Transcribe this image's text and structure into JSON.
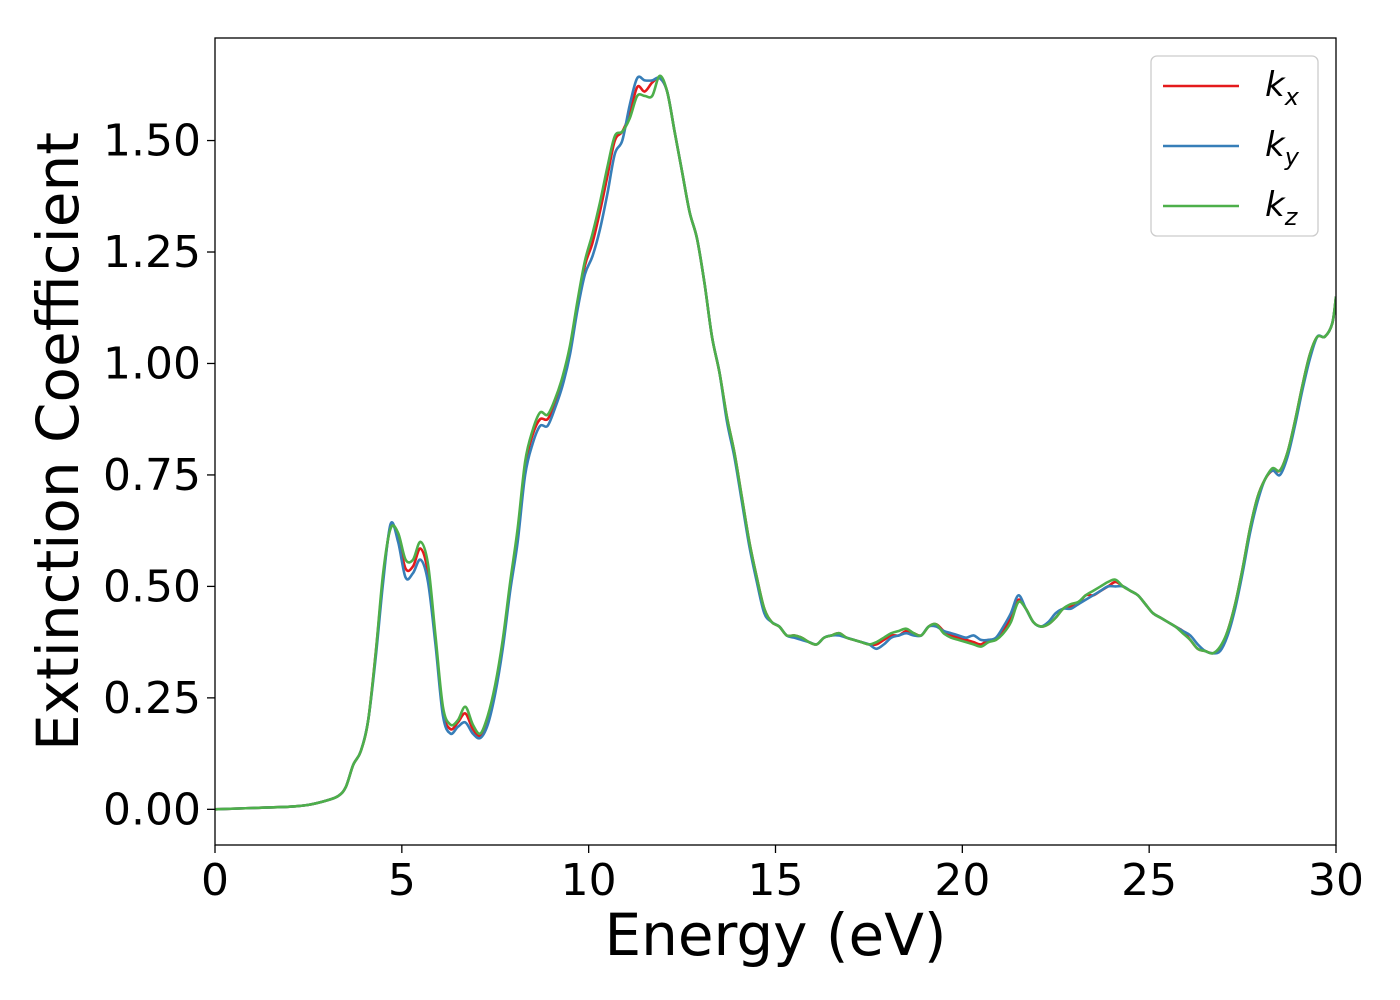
{
  "chart_data": {
    "type": "line",
    "xlabel": "Energy (eV)",
    "ylabel": "Extinction Coefficient",
    "xlim": [
      0,
      30
    ],
    "ylim": [
      -0.08,
      1.73
    ],
    "xticks": [
      0,
      5,
      10,
      15,
      20,
      25,
      30
    ],
    "xtick_labels": [
      "0",
      "5",
      "10",
      "15",
      "20",
      "25",
      "30"
    ],
    "yticks": [
      0,
      0.25,
      0.5,
      0.75,
      1.0,
      1.25,
      1.5
    ],
    "ytick_labels": [
      "0.00",
      "0.25",
      "0.50",
      "0.75",
      "1.00",
      "1.25",
      "1.50"
    ],
    "grid": false,
    "legend_position": "top-right",
    "series": [
      {
        "name": "k_x",
        "label_main": "k",
        "label_sub": "x",
        "color": "#e41a1c",
        "x": [
          0,
          1,
          2,
          2.5,
          3,
          3.3,
          3.5,
          3.7,
          3.9,
          4.1,
          4.3,
          4.5,
          4.7,
          4.9,
          5.1,
          5.3,
          5.5,
          5.7,
          5.9,
          6.1,
          6.3,
          6.5,
          6.7,
          6.9,
          7.1,
          7.3,
          7.5,
          7.7,
          7.9,
          8.1,
          8.3,
          8.5,
          8.7,
          8.9,
          9.1,
          9.3,
          9.5,
          9.7,
          9.9,
          10.1,
          10.3,
          10.5,
          10.7,
          10.9,
          11.1,
          11.3,
          11.5,
          11.7,
          11.9,
          12.1,
          12.3,
          12.5,
          12.7,
          12.9,
          13.1,
          13.3,
          13.5,
          13.7,
          13.9,
          14.1,
          14.3,
          14.5,
          14.7,
          14.9,
          15.1,
          15.3,
          15.5,
          15.7,
          15.9,
          16.1,
          16.3,
          16.5,
          16.7,
          16.9,
          17.1,
          17.3,
          17.5,
          17.7,
          17.9,
          18.1,
          18.3,
          18.5,
          18.7,
          18.9,
          19.1,
          19.3,
          19.5,
          19.7,
          19.9,
          20.1,
          20.3,
          20.5,
          20.7,
          20.9,
          21.1,
          21.3,
          21.5,
          21.7,
          21.9,
          22.1,
          22.3,
          22.5,
          22.7,
          22.9,
          23.1,
          23.3,
          23.5,
          23.7,
          23.9,
          24.1,
          24.3,
          24.5,
          24.7,
          24.9,
          25.1,
          25.3,
          25.5,
          25.7,
          25.9,
          26.1,
          26.3,
          26.5,
          26.7,
          26.9,
          27.1,
          27.3,
          27.5,
          27.7,
          27.9,
          28.1,
          28.3,
          28.5,
          28.7,
          28.9,
          29.1,
          29.3,
          29.5,
          29.7,
          29.9,
          30
        ],
        "y": [
          0,
          0.003,
          0.006,
          0.01,
          0.02,
          0.03,
          0.05,
          0.1,
          0.13,
          0.2,
          0.35,
          0.52,
          0.635,
          0.61,
          0.54,
          0.545,
          0.585,
          0.53,
          0.38,
          0.22,
          0.18,
          0.195,
          0.215,
          0.18,
          0.165,
          0.2,
          0.27,
          0.37,
          0.5,
          0.62,
          0.77,
          0.84,
          0.875,
          0.875,
          0.91,
          0.96,
          1.03,
          1.13,
          1.22,
          1.27,
          1.34,
          1.42,
          1.5,
          1.52,
          1.56,
          1.62,
          1.61,
          1.63,
          1.64,
          1.61,
          1.52,
          1.43,
          1.34,
          1.28,
          1.18,
          1.06,
          0.98,
          0.88,
          0.8,
          0.7,
          0.6,
          0.52,
          0.45,
          0.42,
          0.41,
          0.39,
          0.39,
          0.385,
          0.375,
          0.37,
          0.385,
          0.39,
          0.395,
          0.385,
          0.38,
          0.375,
          0.37,
          0.37,
          0.38,
          0.39,
          0.39,
          0.4,
          0.395,
          0.39,
          0.41,
          0.415,
          0.4,
          0.39,
          0.385,
          0.38,
          0.375,
          0.37,
          0.38,
          0.38,
          0.4,
          0.43,
          0.47,
          0.45,
          0.42,
          0.41,
          0.415,
          0.43,
          0.45,
          0.455,
          0.46,
          0.48,
          0.48,
          0.49,
          0.5,
          0.51,
          0.5,
          0.49,
          0.48,
          0.46,
          0.44,
          0.43,
          0.42,
          0.41,
          0.4,
          0.38,
          0.36,
          0.355,
          0.35,
          0.36,
          0.4,
          0.46,
          0.54,
          0.63,
          0.7,
          0.74,
          0.76,
          0.76,
          0.8,
          0.87,
          0.95,
          1.02,
          1.06,
          1.06,
          1.09,
          1.15
        ]
      },
      {
        "name": "k_y",
        "label_main": "k",
        "label_sub": "y",
        "color": "#377eb8",
        "x": [
          0,
          1,
          2,
          2.5,
          3,
          3.3,
          3.5,
          3.7,
          3.9,
          4.1,
          4.3,
          4.5,
          4.7,
          4.9,
          5.1,
          5.3,
          5.5,
          5.7,
          5.9,
          6.1,
          6.3,
          6.5,
          6.7,
          6.9,
          7.1,
          7.3,
          7.5,
          7.7,
          7.9,
          8.1,
          8.3,
          8.5,
          8.7,
          8.9,
          9.1,
          9.3,
          9.5,
          9.7,
          9.9,
          10.1,
          10.3,
          10.5,
          10.7,
          10.9,
          11.1,
          11.3,
          11.5,
          11.7,
          11.9,
          12.1,
          12.3,
          12.5,
          12.7,
          12.9,
          13.1,
          13.3,
          13.5,
          13.7,
          13.9,
          14.1,
          14.3,
          14.5,
          14.7,
          14.9,
          15.1,
          15.3,
          15.5,
          15.7,
          15.9,
          16.1,
          16.3,
          16.5,
          16.7,
          16.9,
          17.1,
          17.3,
          17.5,
          17.7,
          17.9,
          18.1,
          18.3,
          18.5,
          18.7,
          18.9,
          19.1,
          19.3,
          19.5,
          19.7,
          19.9,
          20.1,
          20.3,
          20.5,
          20.7,
          20.9,
          21.1,
          21.3,
          21.5,
          21.7,
          21.9,
          22.1,
          22.3,
          22.5,
          22.7,
          22.9,
          23.1,
          23.3,
          23.5,
          23.7,
          23.9,
          24.1,
          24.3,
          24.5,
          24.7,
          24.9,
          25.1,
          25.3,
          25.5,
          25.7,
          25.9,
          26.1,
          26.3,
          26.5,
          26.7,
          26.9,
          27.1,
          27.3,
          27.5,
          27.7,
          27.9,
          28.1,
          28.3,
          28.5,
          28.7,
          28.9,
          29.1,
          29.3,
          29.5,
          29.7,
          29.9,
          30
        ],
        "y": [
          0,
          0.003,
          0.006,
          0.01,
          0.02,
          0.03,
          0.05,
          0.1,
          0.13,
          0.2,
          0.34,
          0.51,
          0.64,
          0.6,
          0.52,
          0.53,
          0.56,
          0.51,
          0.37,
          0.21,
          0.17,
          0.185,
          0.195,
          0.17,
          0.16,
          0.19,
          0.26,
          0.36,
          0.49,
          0.6,
          0.75,
          0.82,
          0.86,
          0.86,
          0.9,
          0.95,
          1.02,
          1.12,
          1.2,
          1.24,
          1.3,
          1.38,
          1.47,
          1.5,
          1.58,
          1.64,
          1.635,
          1.635,
          1.64,
          1.61,
          1.52,
          1.43,
          1.34,
          1.28,
          1.18,
          1.06,
          0.98,
          0.87,
          0.79,
          0.69,
          0.59,
          0.51,
          0.44,
          0.42,
          0.41,
          0.39,
          0.385,
          0.38,
          0.375,
          0.37,
          0.385,
          0.39,
          0.39,
          0.385,
          0.38,
          0.375,
          0.37,
          0.36,
          0.37,
          0.385,
          0.39,
          0.395,
          0.39,
          0.39,
          0.41,
          0.41,
          0.4,
          0.395,
          0.39,
          0.385,
          0.39,
          0.38,
          0.38,
          0.385,
          0.41,
          0.44,
          0.48,
          0.45,
          0.42,
          0.41,
          0.42,
          0.44,
          0.45,
          0.45,
          0.46,
          0.47,
          0.48,
          0.49,
          0.5,
          0.5,
          0.5,
          0.49,
          0.48,
          0.46,
          0.44,
          0.43,
          0.42,
          0.41,
          0.4,
          0.39,
          0.37,
          0.355,
          0.35,
          0.355,
          0.39,
          0.45,
          0.53,
          0.62,
          0.69,
          0.74,
          0.76,
          0.75,
          0.79,
          0.86,
          0.94,
          1.01,
          1.06,
          1.06,
          1.09,
          1.15
        ]
      },
      {
        "name": "k_z",
        "label_main": "k",
        "label_sub": "z",
        "color": "#4daf4a",
        "x": [
          0,
          1,
          2,
          2.5,
          3,
          3.3,
          3.5,
          3.7,
          3.9,
          4.1,
          4.3,
          4.5,
          4.7,
          4.9,
          5.1,
          5.3,
          5.5,
          5.7,
          5.9,
          6.1,
          6.3,
          6.5,
          6.7,
          6.9,
          7.1,
          7.3,
          7.5,
          7.7,
          7.9,
          8.1,
          8.3,
          8.5,
          8.7,
          8.9,
          9.1,
          9.3,
          9.5,
          9.7,
          9.9,
          10.1,
          10.3,
          10.5,
          10.7,
          10.9,
          11.1,
          11.3,
          11.5,
          11.7,
          11.9,
          12.1,
          12.3,
          12.5,
          12.7,
          12.9,
          13.1,
          13.3,
          13.5,
          13.7,
          13.9,
          14.1,
          14.3,
          14.5,
          14.7,
          14.9,
          15.1,
          15.3,
          15.5,
          15.7,
          15.9,
          16.1,
          16.3,
          16.5,
          16.7,
          16.9,
          17.1,
          17.3,
          17.5,
          17.7,
          17.9,
          18.1,
          18.3,
          18.5,
          18.7,
          18.9,
          19.1,
          19.3,
          19.5,
          19.7,
          19.9,
          20.1,
          20.3,
          20.5,
          20.7,
          20.9,
          21.1,
          21.3,
          21.5,
          21.7,
          21.9,
          22.1,
          22.3,
          22.5,
          22.7,
          22.9,
          23.1,
          23.3,
          23.5,
          23.7,
          23.9,
          24.1,
          24.3,
          24.5,
          24.7,
          24.9,
          25.1,
          25.3,
          25.5,
          25.7,
          25.9,
          26.1,
          26.3,
          26.5,
          26.7,
          26.9,
          27.1,
          27.3,
          27.5,
          27.7,
          27.9,
          28.1,
          28.3,
          28.5,
          28.7,
          28.9,
          29.1,
          29.3,
          29.5,
          29.7,
          29.9,
          30
        ],
        "y": [
          0,
          0.003,
          0.006,
          0.01,
          0.02,
          0.03,
          0.05,
          0.1,
          0.13,
          0.2,
          0.35,
          0.53,
          0.63,
          0.62,
          0.56,
          0.56,
          0.6,
          0.55,
          0.39,
          0.23,
          0.19,
          0.2,
          0.23,
          0.19,
          0.17,
          0.21,
          0.28,
          0.38,
          0.51,
          0.63,
          0.78,
          0.85,
          0.89,
          0.885,
          0.92,
          0.97,
          1.04,
          1.14,
          1.23,
          1.29,
          1.36,
          1.44,
          1.51,
          1.52,
          1.55,
          1.6,
          1.6,
          1.6,
          1.645,
          1.61,
          1.52,
          1.43,
          1.34,
          1.28,
          1.18,
          1.06,
          0.98,
          0.88,
          0.8,
          0.7,
          0.6,
          0.52,
          0.45,
          0.42,
          0.41,
          0.39,
          0.39,
          0.385,
          0.375,
          0.37,
          0.385,
          0.39,
          0.395,
          0.385,
          0.38,
          0.375,
          0.37,
          0.375,
          0.385,
          0.395,
          0.4,
          0.405,
          0.395,
          0.39,
          0.41,
          0.415,
          0.395,
          0.385,
          0.38,
          0.375,
          0.37,
          0.365,
          0.375,
          0.38,
          0.395,
          0.42,
          0.465,
          0.45,
          0.42,
          0.41,
          0.415,
          0.43,
          0.45,
          0.46,
          0.465,
          0.48,
          0.49,
          0.5,
          0.51,
          0.515,
          0.5,
          0.49,
          0.48,
          0.46,
          0.44,
          0.43,
          0.42,
          0.41,
          0.395,
          0.38,
          0.36,
          0.355,
          0.35,
          0.365,
          0.4,
          0.46,
          0.54,
          0.63,
          0.7,
          0.74,
          0.765,
          0.76,
          0.8,
          0.87,
          0.95,
          1.02,
          1.06,
          1.06,
          1.09,
          1.15
        ]
      }
    ]
  }
}
